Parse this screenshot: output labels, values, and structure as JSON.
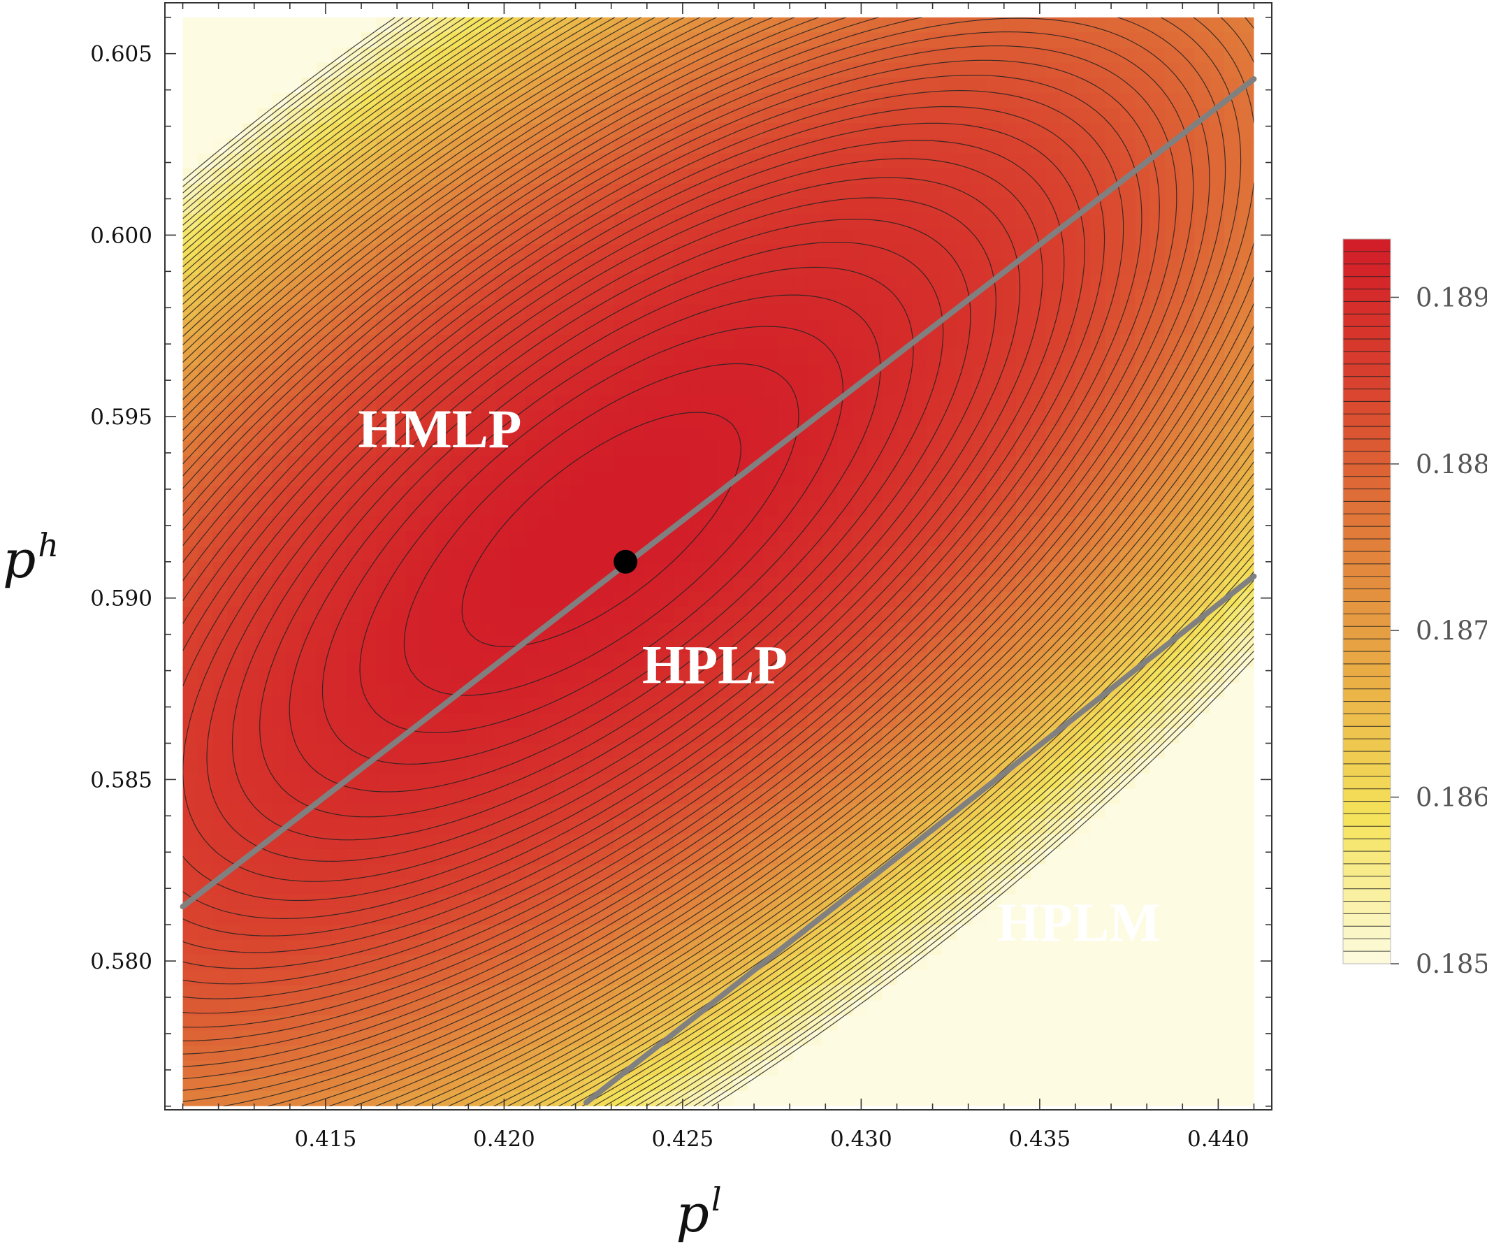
{
  "chart_data": {
    "type": "contour",
    "title": "",
    "xlabel": {
      "base": "p",
      "sup": "l"
    },
    "ylabel": {
      "base": "p",
      "sup": "h"
    },
    "xlim": [
      0.4105,
      0.4415
    ],
    "ylim": [
      0.5759,
      0.6064
    ],
    "data_xlim": [
      0.411,
      0.441
    ],
    "data_ylim": [
      0.576,
      0.606
    ],
    "x_ticks": [
      {
        "value": 0.415,
        "label": "0.415"
      },
      {
        "value": 0.42,
        "label": "0.420"
      },
      {
        "value": 0.425,
        "label": "0.425"
      },
      {
        "value": 0.43,
        "label": "0.430"
      },
      {
        "value": 0.435,
        "label": "0.435"
      },
      {
        "value": 0.44,
        "label": "0.440"
      }
    ],
    "y_ticks": [
      {
        "value": 0.58,
        "label": "0.580"
      },
      {
        "value": 0.585,
        "label": "0.585"
      },
      {
        "value": 0.59,
        "label": "0.590"
      },
      {
        "value": 0.595,
        "label": "0.595"
      },
      {
        "value": 0.6,
        "label": "0.600"
      },
      {
        "value": 0.605,
        "label": "0.605"
      }
    ],
    "colorbar": {
      "range": [
        0.185,
        0.18935
      ],
      "ticks": [
        {
          "value": 0.185,
          "label": "0.185"
        },
        {
          "value": 0.186,
          "label": "0.186"
        },
        {
          "value": 0.187,
          "label": "0.187"
        },
        {
          "value": 0.188,
          "label": "0.188"
        },
        {
          "value": 0.189,
          "label": "0.189"
        }
      ],
      "colors": [
        "#fdfbe2",
        "#f5e35a",
        "#e9ad45",
        "#e07a3a",
        "#d9422e",
        "#d21c28"
      ]
    },
    "boundary_lines": [
      {
        "name": "",
        "x1": 0.411,
        "y1": 0.5815,
        "x2": 0.441,
        "y2": 0.6043
      },
      {
        "name": "",
        "x1": 0.4223,
        "y1": 0.5761,
        "x2": 0.441,
        "y2": 0.5906
      }
    ],
    "optimum_point": {
      "x": 0.4234,
      "y": 0.591
    },
    "region_labels": [
      {
        "text": "HMLP",
        "x": 0.4182,
        "y": 0.5945
      },
      {
        "text": "HPLP",
        "x": 0.4259,
        "y": 0.588
      },
      {
        "text": "HPLM",
        "x": 0.4361,
        "y": 0.5809
      }
    ],
    "grid": false,
    "legend": "colorbar-right"
  }
}
